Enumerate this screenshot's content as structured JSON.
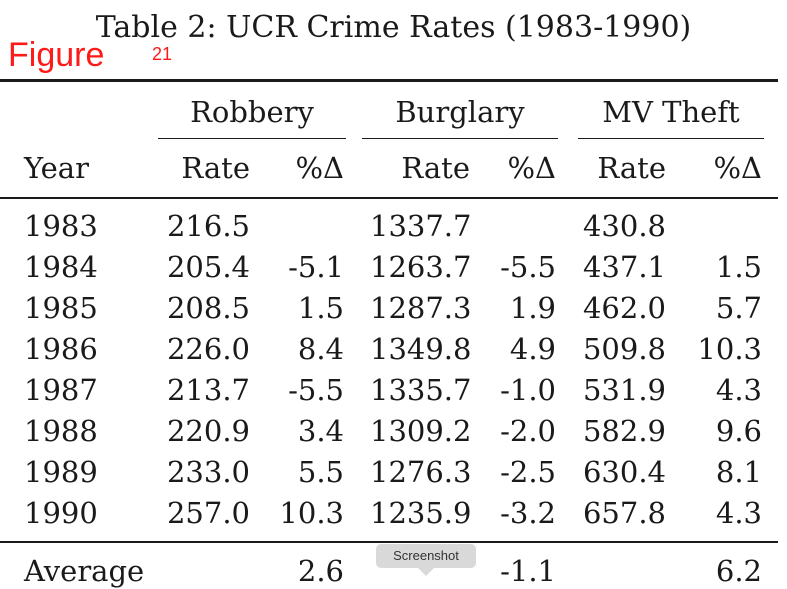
{
  "caption": "Table 2: UCR Crime Rates (1983-1990)",
  "overlay": {
    "figure_label": "Figure",
    "figure_number": "21"
  },
  "table": {
    "groups": [
      "Robbery",
      "Burglary",
      "MV Theft"
    ],
    "year_header": "Year",
    "rate_header": "Rate",
    "change_header": "%Δ",
    "rows": [
      [
        "1983",
        "216.5",
        "",
        "1337.7",
        "",
        "430.8",
        ""
      ],
      [
        "1984",
        "205.4",
        "-5.1",
        "1263.7",
        "-5.5",
        "437.1",
        "1.5"
      ],
      [
        "1985",
        "208.5",
        "1.5",
        "1287.3",
        "1.9",
        "462.0",
        "5.7"
      ],
      [
        "1986",
        "226.0",
        "8.4",
        "1349.8",
        "4.9",
        "509.8",
        "10.3"
      ],
      [
        "1987",
        "213.7",
        "-5.5",
        "1335.7",
        "-1.0",
        "531.9",
        "4.3"
      ],
      [
        "1988",
        "220.9",
        "3.4",
        "1309.2",
        "-2.0",
        "582.9",
        "9.6"
      ],
      [
        "1989",
        "233.0",
        "5.5",
        "1276.3",
        "-2.5",
        "630.4",
        "8.1"
      ],
      [
        "1990",
        "257.0",
        "10.3",
        "1235.9",
        "-3.2",
        "657.8",
        "4.3"
      ]
    ],
    "average": [
      "Average",
      "",
      "2.6",
      "",
      "-1.1",
      "",
      "6.2"
    ]
  },
  "tooltip": "Screenshot"
}
